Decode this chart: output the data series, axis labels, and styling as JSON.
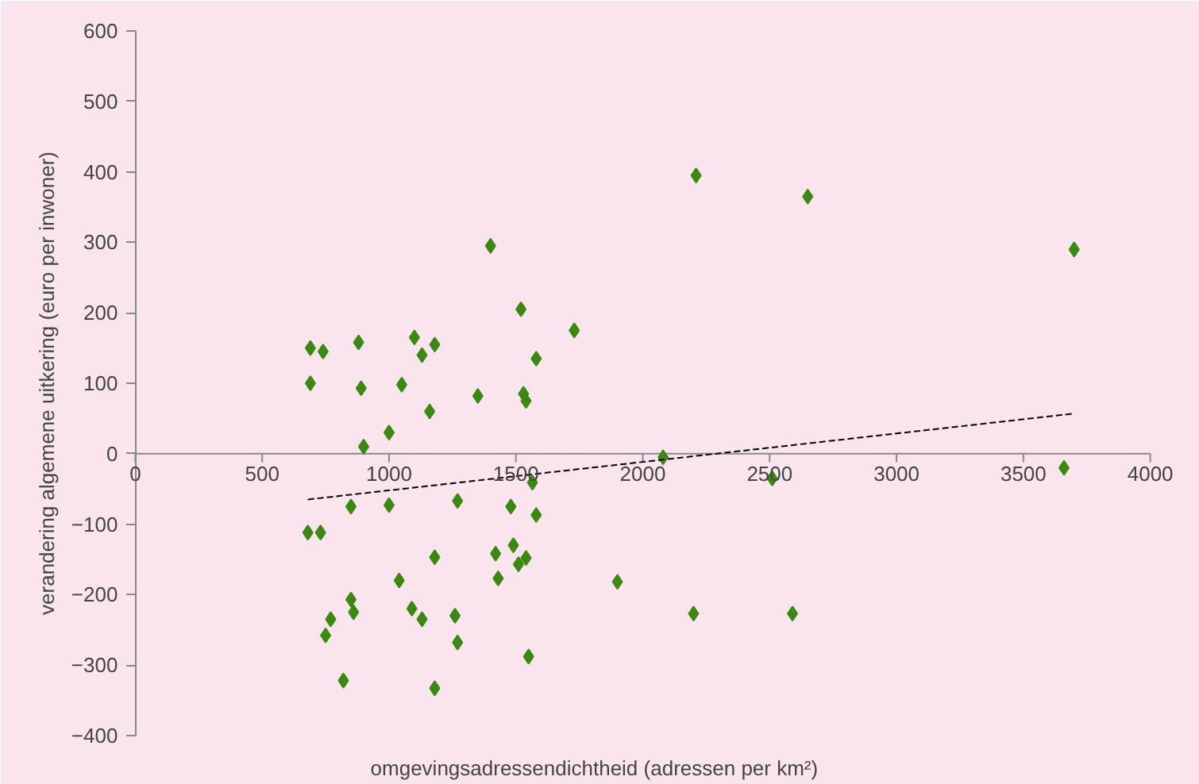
{
  "chart_data": {
    "type": "scatter",
    "xlabel": "omgevingsadressendichtheid  (adressen per km²)",
    "ylabel": "verandering algemene uitkering (euro per inwoner)",
    "xlim": [
      0,
      4000
    ],
    "ylim": [
      -400,
      600
    ],
    "xticks": [
      0,
      500,
      1000,
      1500,
      2000,
      2500,
      3000,
      3500,
      4000
    ],
    "yticks": [
      -400,
      -300,
      -200,
      -100,
      0,
      100,
      200,
      300,
      400,
      500,
      600
    ],
    "grid": false,
    "marker": "diamond",
    "series": [
      {
        "color": "#3a8a0f",
        "x": [
          690,
          690,
          740,
          880,
          890,
          1100,
          1130,
          1180,
          1050,
          1000,
          900,
          1160,
          1400,
          1520,
          1580,
          1730,
          1530,
          1540,
          1350,
          2210,
          2650,
          3700,
          2080,
          2510,
          3660,
          680,
          730,
          850,
          1000,
          1270,
          1480,
          1580,
          1565,
          1180,
          1420,
          1490,
          1540,
          1510,
          1430,
          1040,
          850,
          860,
          770,
          750,
          1090,
          1130,
          1260,
          1270,
          1550,
          820,
          1180,
          1900,
          2200,
          2590
        ],
        "values": [
          150,
          100,
          145,
          158,
          93,
          165,
          140,
          155,
          98,
          30,
          10,
          60,
          295,
          205,
          135,
          175,
          85,
          75,
          82,
          395,
          365,
          290,
          -5,
          -35,
          -20,
          -112,
          -112,
          -75,
          -73,
          -67,
          -75,
          -87,
          -41,
          -147,
          -142,
          -130,
          -148,
          -157,
          -177,
          -180,
          -207,
          -225,
          -235,
          -258,
          -220,
          -235,
          -230,
          -268,
          -288,
          -322,
          -333,
          -182,
          -227,
          -227
        ]
      },
      {
        "type": "line",
        "color": "#000000",
        "line_style": "dashed",
        "marker": "none",
        "x": [
          680,
          3700
        ],
        "values": [
          -65,
          57
        ]
      }
    ]
  }
}
